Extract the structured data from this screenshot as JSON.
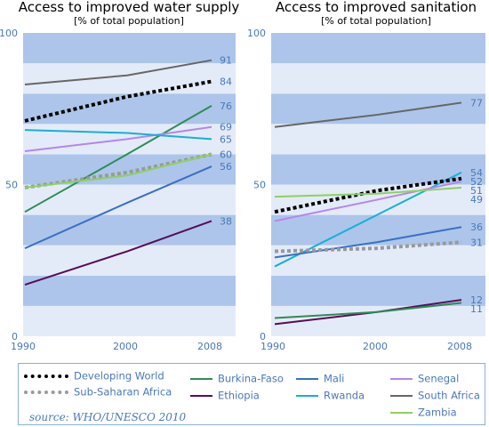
{
  "chart_data": [
    {
      "type": "line",
      "title": "Access to improved water supply",
      "subtitle": "[% of total population]",
      "x": [
        1990,
        2000,
        2008
      ],
      "ylim": [
        0,
        100
      ],
      "y_ticks": [
        0,
        50,
        100
      ],
      "grid": "alternating horizontal bands",
      "series": [
        {
          "name": "South Africa",
          "values": [
            83,
            86,
            91
          ],
          "end_label": "91"
        },
        {
          "name": "Developing World",
          "values": [
            71,
            79,
            84
          ],
          "end_label": "84"
        },
        {
          "name": "Burkina-Faso",
          "values": [
            41,
            60,
            76
          ],
          "end_label": "76"
        },
        {
          "name": "Senegal",
          "values": [
            61,
            65,
            69
          ],
          "end_label": "69"
        },
        {
          "name": "Rwanda",
          "values": [
            68,
            67,
            65
          ],
          "end_label": "65"
        },
        {
          "name": "Sub-Saharan Africa",
          "values": [
            49,
            54,
            60
          ],
          "end_label": "60"
        },
        {
          "name": "Zambia",
          "values": [
            49,
            53,
            60
          ],
          "end_label": ""
        },
        {
          "name": "Mali",
          "values": [
            29,
            44,
            56
          ],
          "end_label": "56"
        },
        {
          "name": "Ethiopia",
          "values": [
            17,
            28,
            38
          ],
          "end_label": "38"
        }
      ]
    },
    {
      "type": "line",
      "title": "Access to improved sanitation",
      "subtitle": "[% of total population]",
      "x": [
        1990,
        2000,
        2008
      ],
      "ylim": [
        0,
        100
      ],
      "y_ticks": [
        0,
        50,
        100
      ],
      "grid": "alternating horizontal bands",
      "series": [
        {
          "name": "South Africa",
          "values": [
            69,
            73,
            77
          ],
          "end_label": "77"
        },
        {
          "name": "Rwanda",
          "values": [
            23,
            40,
            54
          ],
          "end_label": "54"
        },
        {
          "name": "Developing World",
          "values": [
            41,
            48,
            52
          ],
          "end_label": "52"
        },
        {
          "name": "Senegal",
          "values": [
            38,
            45,
            51
          ],
          "end_label": "51"
        },
        {
          "name": "Zambia",
          "values": [
            46,
            47,
            49
          ],
          "end_label": "49"
        },
        {
          "name": "Mali",
          "values": [
            26,
            31,
            36
          ],
          "end_label": "36"
        },
        {
          "name": "Sub-Saharan Africa",
          "values": [
            28,
            29,
            31
          ],
          "end_label": "31"
        },
        {
          "name": "Ethiopia",
          "values": [
            4,
            8,
            12
          ],
          "end_label": "12"
        },
        {
          "name": "Burkina-Faso",
          "values": [
            6,
            8,
            11
          ],
          "end_label": "11"
        }
      ]
    }
  ],
  "series_styles": {
    "Developing World": {
      "color": "#000000",
      "dash": "dotted"
    },
    "Sub-Saharan Africa": {
      "color": "#999999",
      "dash": "dotted"
    },
    "Burkina-Faso": {
      "color": "#2e8b57",
      "dash": "solid"
    },
    "Ethiopia": {
      "color": "#5a0a5a",
      "dash": "solid"
    },
    "Mali": {
      "color": "#3a6fc4",
      "dash": "solid"
    },
    "Rwanda": {
      "color": "#16b0d8",
      "dash": "solid"
    },
    "Senegal": {
      "color": "#b585f0",
      "dash": "solid"
    },
    "South Africa": {
      "color": "#666666",
      "dash": "solid"
    },
    "Zambia": {
      "color": "#8fd060",
      "dash": "solid"
    }
  },
  "colors": {
    "band_dark": "#adc5ea",
    "band_light": "#e4ebf8",
    "text": "#4a78b8"
  },
  "legend": {
    "items": [
      "Developing World",
      "Sub-Saharan Africa",
      "Burkina-Faso",
      "Ethiopia",
      "Mali",
      "Rwanda",
      "Senegal",
      "South Africa",
      "Zambia"
    ],
    "source": "source: WHO/UNESCO 2010"
  }
}
